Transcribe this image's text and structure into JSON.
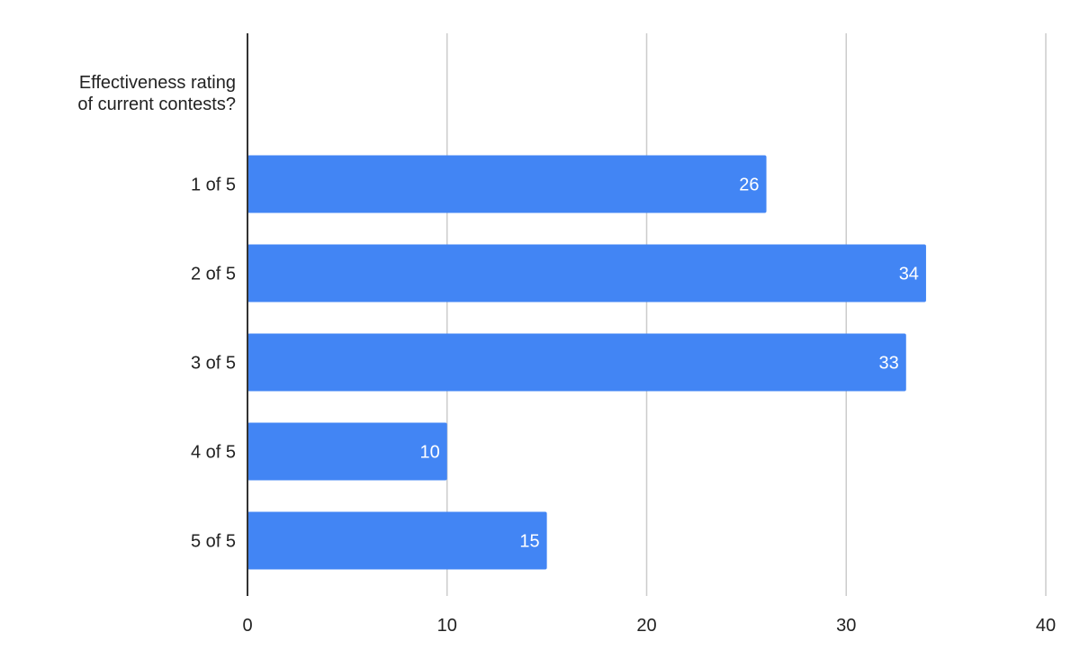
{
  "chart_data": {
    "type": "bar",
    "orientation": "horizontal",
    "ylabel_lines": [
      "Effectiveness rating",
      "of current contests?"
    ],
    "categories": [
      "1 of 5",
      "2 of 5",
      "3 of 5",
      "4 of 5",
      "5 of 5"
    ],
    "values": [
      26,
      34,
      33,
      10,
      15
    ],
    "xlim": [
      0,
      40
    ],
    "xticks": [
      0,
      10,
      20,
      30,
      40
    ],
    "grid": true,
    "bar_color": "#4285F4",
    "grid_color": "#CCCCCC",
    "axis_color": "#333333"
  }
}
